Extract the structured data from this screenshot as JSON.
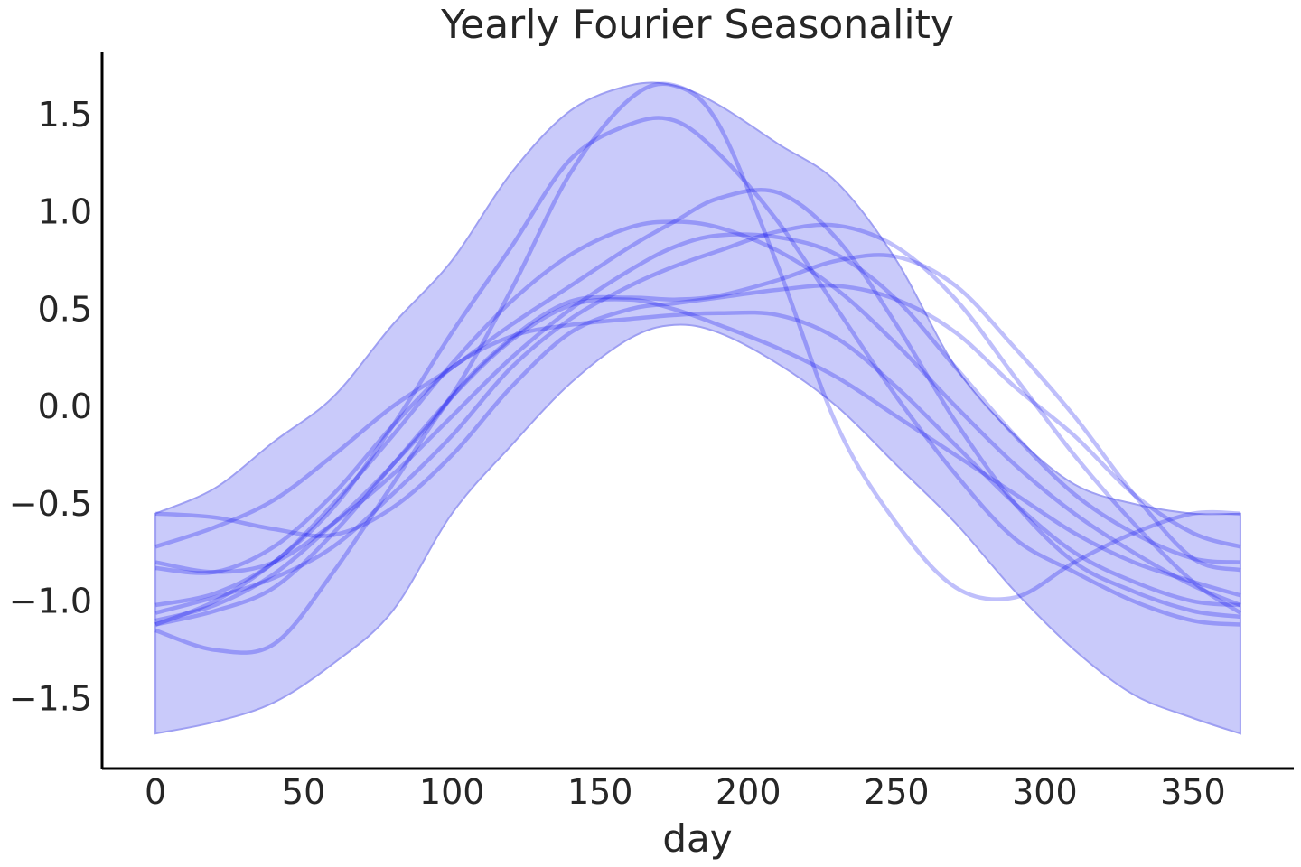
{
  "chart_data": {
    "type": "line",
    "title": "Yearly Fourier Seasonality",
    "xlabel": "day",
    "ylabel": "",
    "xlim": [
      -18,
      384
    ],
    "ylim": [
      -1.86,
      1.82
    ],
    "xticks": [
      0,
      50,
      100,
      150,
      200,
      250,
      300,
      350
    ],
    "yticks": [
      1.5,
      1.0,
      0.5,
      0.0,
      -0.5,
      -1.0,
      -1.5
    ],
    "ytick_labels": [
      "1.5",
      "1.0",
      "0.5",
      "0.0",
      "−0.5",
      "−1.0",
      "−1.5"
    ],
    "grid": false,
    "line_color": "#0000ee",
    "band_color": "#c9cafa",
    "band_edge_color": "#9e9ff2",
    "band": {
      "x": [
        0,
        20,
        40,
        60,
        80,
        100,
        120,
        140,
        160,
        175,
        190,
        210,
        230,
        250,
        270,
        290,
        310,
        330,
        350,
        366
      ],
      "lower": [
        -1.68,
        -1.62,
        -1.52,
        -1.32,
        -1.05,
        -0.55,
        -0.2,
        0.12,
        0.35,
        0.42,
        0.38,
        0.22,
        0.0,
        -0.3,
        -0.6,
        -0.95,
        -1.25,
        -1.48,
        -1.6,
        -1.68
      ],
      "upper": [
        -0.55,
        -0.42,
        -0.18,
        0.05,
        0.42,
        0.75,
        1.2,
        1.52,
        1.65,
        1.65,
        1.55,
        1.35,
        1.15,
        0.75,
        0.2,
        -0.15,
        -0.4,
        -0.5,
        -0.55,
        -0.55
      ]
    },
    "series": [
      {
        "values": [
          -1.1,
          -1.02,
          -0.86,
          -0.6,
          -0.3,
          0.06,
          0.6,
          1.2,
          1.58,
          1.65,
          1.45,
          0.72,
          -0.1,
          -0.6,
          -0.93,
          -0.98,
          -0.8,
          -0.65,
          -0.55,
          -0.55
        ]
      },
      {
        "values": [
          -1.12,
          -1.0,
          -0.8,
          -0.52,
          -0.1,
          0.38,
          0.82,
          1.27,
          1.45,
          1.47,
          1.3,
          0.95,
          0.5,
          0.05,
          -0.35,
          -0.68,
          -0.85,
          -1.0,
          -1.1,
          -1.12
        ]
      },
      {
        "values": [
          -0.72,
          -0.62,
          -0.48,
          -0.25,
          0.0,
          0.2,
          0.42,
          0.62,
          0.82,
          0.95,
          1.07,
          1.1,
          0.86,
          0.42,
          -0.08,
          -0.5,
          -0.8,
          -0.95,
          -1.05,
          -1.08
        ]
      },
      {
        "values": [
          -1.02,
          -0.96,
          -0.8,
          -0.5,
          -0.15,
          0.22,
          0.54,
          0.78,
          0.92,
          0.95,
          0.92,
          0.8,
          0.6,
          0.32,
          0.0,
          -0.3,
          -0.55,
          -0.75,
          -0.92,
          -1.02
        ]
      },
      {
        "values": [
          -0.8,
          -0.85,
          -0.8,
          -0.6,
          -0.35,
          -0.05,
          0.25,
          0.5,
          0.7,
          0.82,
          0.88,
          0.87,
          0.78,
          0.55,
          0.2,
          -0.15,
          -0.45,
          -0.65,
          -0.78,
          -0.8
        ]
      },
      {
        "values": [
          -1.06,
          -0.98,
          -0.88,
          -0.72,
          -0.45,
          -0.15,
          0.2,
          0.45,
          0.62,
          0.72,
          0.8,
          0.9,
          0.93,
          0.82,
          0.55,
          0.15,
          -0.25,
          -0.6,
          -0.9,
          -1.06
        ]
      },
      {
        "values": [
          -0.55,
          -0.57,
          -0.63,
          -0.66,
          -0.52,
          -0.25,
          0.1,
          0.38,
          0.5,
          0.53,
          0.56,
          0.6,
          0.62,
          0.55,
          0.38,
          0.1,
          -0.15,
          -0.45,
          -0.65,
          -0.72
        ]
      },
      {
        "values": [
          -1.15,
          -1.25,
          -1.22,
          -0.85,
          -0.4,
          0.05,
          0.35,
          0.54,
          0.56,
          0.55,
          0.57,
          0.65,
          0.75,
          0.77,
          0.62,
          0.3,
          -0.05,
          -0.45,
          -0.78,
          -0.84
        ]
      },
      {
        "values": [
          -1.12,
          -1.05,
          -0.93,
          -0.65,
          -0.3,
          0.05,
          0.34,
          0.52,
          0.55,
          0.5,
          0.42,
          0.3,
          0.15,
          -0.05,
          -0.25,
          -0.45,
          -0.65,
          -0.8,
          -0.9,
          -0.97
        ]
      },
      {
        "values": [
          -0.83,
          -0.85,
          -0.72,
          -0.45,
          -0.1,
          0.2,
          0.36,
          0.42,
          0.45,
          0.47,
          0.48,
          0.47,
          0.35,
          0.1,
          -0.2,
          -0.5,
          -0.75,
          -0.9,
          -1.0,
          -1.02
        ]
      }
    ]
  }
}
